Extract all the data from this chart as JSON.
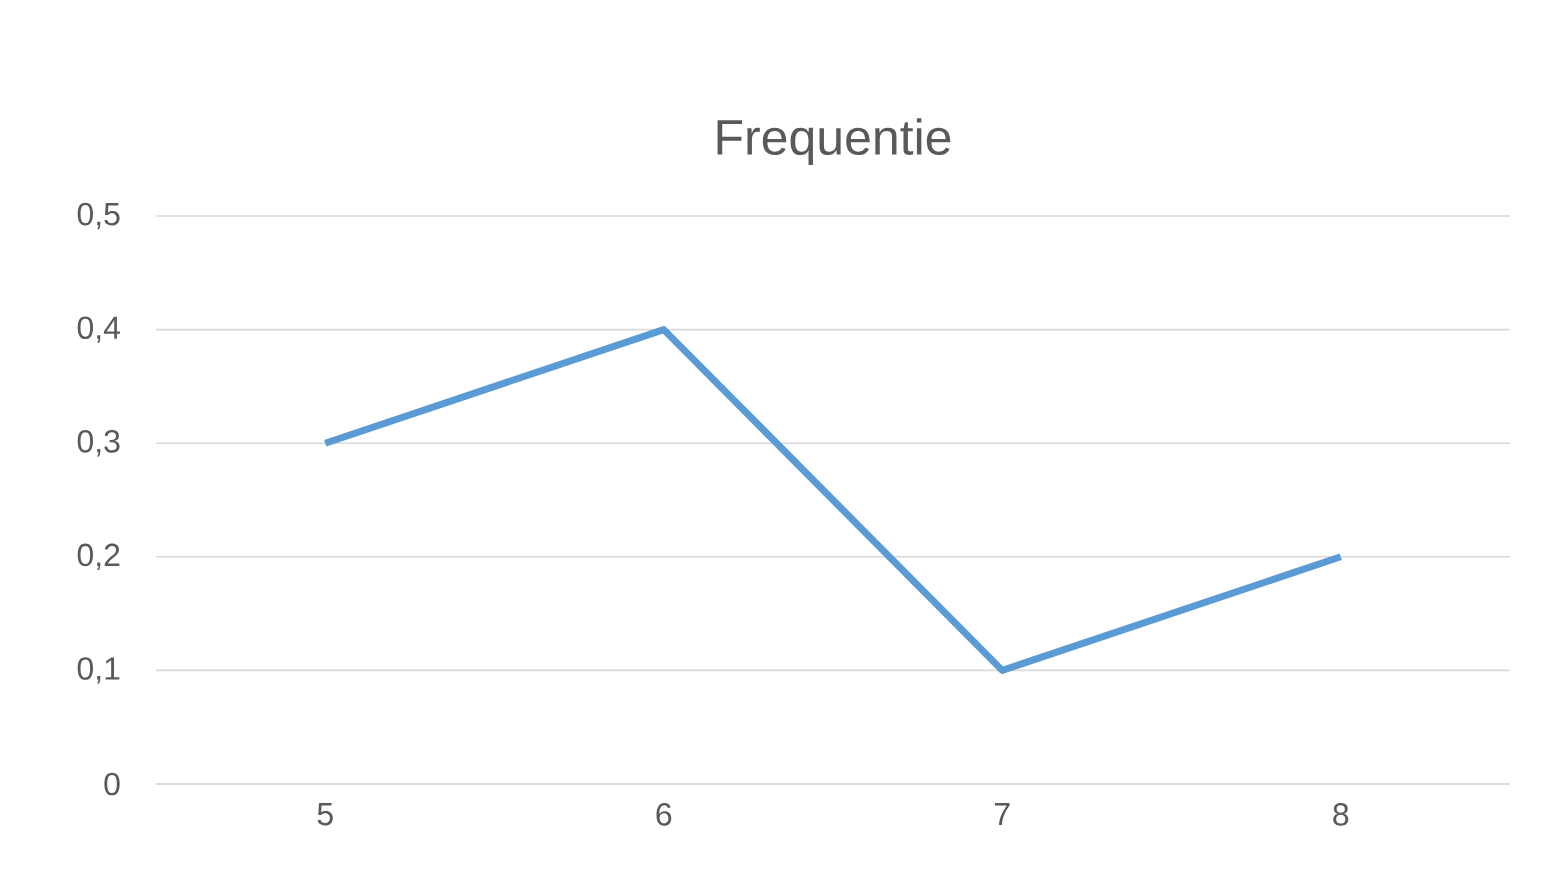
{
  "chart_data": {
    "type": "line",
    "title": "Frequentie",
    "categories": [
      "5",
      "6",
      "7",
      "8"
    ],
    "values": [
      0.3,
      0.4,
      0.1,
      0.2
    ],
    "color": "#5b9bd5",
    "ylim": [
      0,
      0.5
    ],
    "yticks": [
      0,
      {
        "value": 0.1,
        "label": "0,1"
      },
      {
        "value": 0.2,
        "label": "0,2"
      },
      {
        "value": 0.3,
        "label": "0,3"
      },
      {
        "value": 0.4,
        "label": "0,4"
      },
      {
        "value": 0.5,
        "label": "0,5"
      }
    ],
    "grid": "y",
    "marker": "none",
    "line_style": "solid"
  }
}
